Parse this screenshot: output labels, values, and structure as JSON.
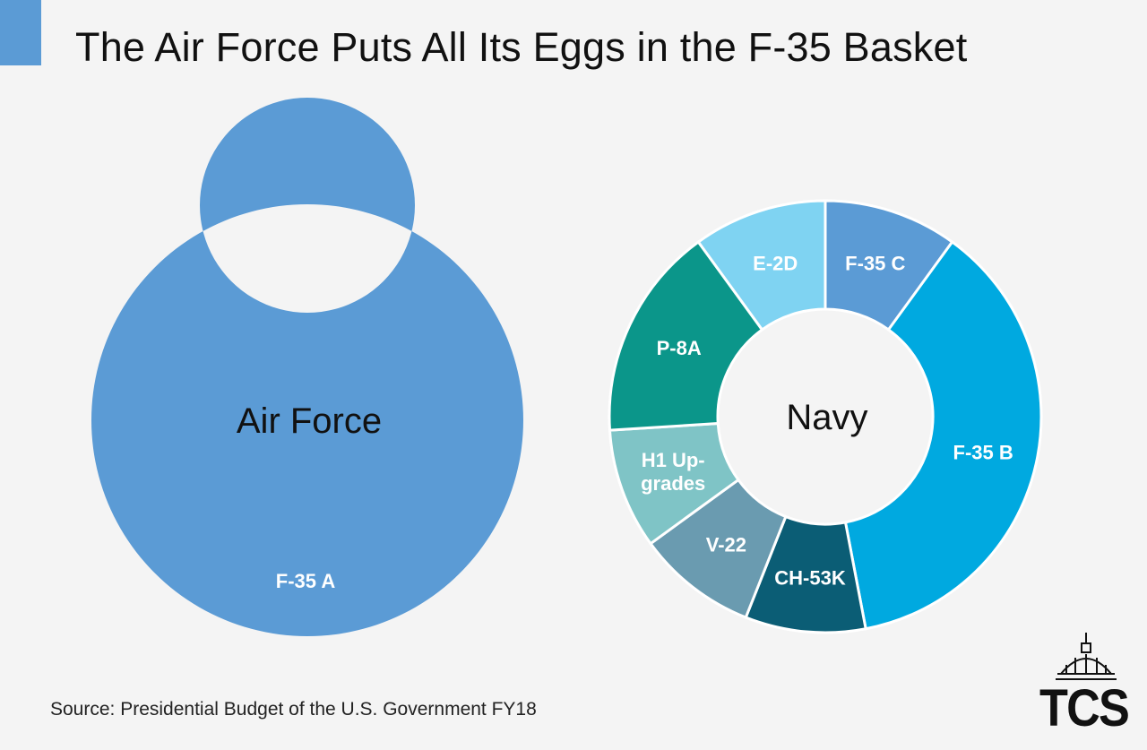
{
  "title": "The Air Force Puts All Its Eggs in the F-35 Basket",
  "source": "Source: Presidential Budget of the U.S. Government FY18",
  "logo_text": "TCS",
  "colors": {
    "accent": "#5b9bd5",
    "background": "#f4f4f4"
  },
  "chart_data": [
    {
      "type": "pie",
      "center_label": "Air Force",
      "slices": [
        {
          "label": "F-35 A",
          "value": 100,
          "color": "#5b9bd5"
        }
      ]
    },
    {
      "type": "pie",
      "center_label": "Navy",
      "slices": [
        {
          "label": "F-35 C",
          "value": 10,
          "color": "#5b9bd5"
        },
        {
          "label": "F-35 B",
          "value": 37,
          "color": "#00a9e0"
        },
        {
          "label": "CH-53K",
          "value": 9,
          "color": "#0b5d75"
        },
        {
          "label": "V-22",
          "value": 9,
          "color": "#6a9bb0"
        },
        {
          "label": "H1 Up-\ngrades",
          "value": 9,
          "color": "#7fc4c6"
        },
        {
          "label": "P-8A",
          "value": 16,
          "color": "#0b968a"
        },
        {
          "label": "E-2D",
          "value": 10,
          "color": "#7fd3f2"
        }
      ]
    }
  ]
}
